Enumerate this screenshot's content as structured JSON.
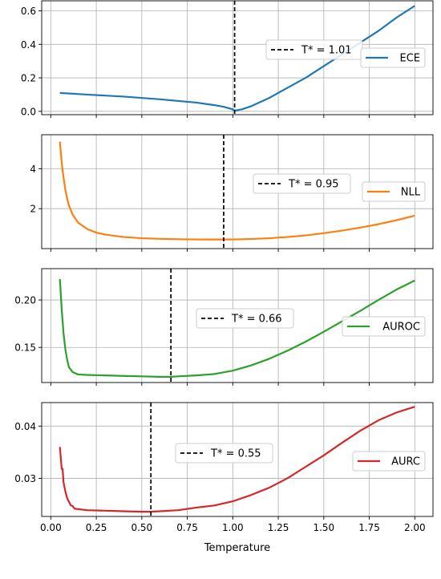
{
  "chart_data": [
    {
      "type": "line",
      "xlim": [
        -0.05,
        2.1
      ],
      "ylim": [
        -0.02,
        0.66
      ],
      "yticks": [
        0.0,
        0.2,
        0.4,
        0.6
      ],
      "ytick_labels": [
        "0.0",
        "0.2",
        "0.4",
        "0.6"
      ],
      "grid": true,
      "series": [
        {
          "name": "ECE",
          "color": "#1f77b4",
          "x": [
            0.05,
            0.2,
            0.4,
            0.6,
            0.8,
            0.9,
            0.95,
            1.0,
            1.01,
            1.05,
            1.1,
            1.2,
            1.3,
            1.4,
            1.5,
            1.6,
            1.7,
            1.8,
            1.9,
            2.0
          ],
          "y": [
            0.11,
            0.1,
            0.088,
            0.072,
            0.052,
            0.037,
            0.027,
            0.012,
            0.004,
            0.012,
            0.03,
            0.08,
            0.14,
            0.2,
            0.27,
            0.34,
            0.41,
            0.48,
            0.56,
            0.63
          ]
        }
      ],
      "vline": {
        "x": 1.01,
        "label": "T* = 1.01",
        "color": "#000000"
      },
      "legend_placement": "right"
    },
    {
      "type": "line",
      "xlim": [
        -0.05,
        2.1
      ],
      "ylim": [
        0.0,
        5.7
      ],
      "yticks": [
        2,
        4
      ],
      "ytick_labels": [
        "2",
        "4"
      ],
      "grid": true,
      "series": [
        {
          "name": "NLL",
          "color": "#ff7f0e",
          "x": [
            0.05,
            0.06,
            0.07,
            0.08,
            0.09,
            0.1,
            0.12,
            0.15,
            0.2,
            0.25,
            0.3,
            0.4,
            0.5,
            0.6,
            0.7,
            0.8,
            0.9,
            0.95,
            1.0,
            1.1,
            1.2,
            1.3,
            1.4,
            1.5,
            1.6,
            1.7,
            1.8,
            1.9,
            2.0
          ],
          "y": [
            5.35,
            4.3,
            3.55,
            2.95,
            2.5,
            2.15,
            1.7,
            1.3,
            0.98,
            0.8,
            0.7,
            0.58,
            0.52,
            0.49,
            0.47,
            0.46,
            0.455,
            0.455,
            0.46,
            0.48,
            0.52,
            0.58,
            0.66,
            0.77,
            0.9,
            1.05,
            1.22,
            1.42,
            1.65
          ]
        }
      ],
      "vline": {
        "x": 0.95,
        "label": "T* = 0.95",
        "color": "#000000"
      },
      "legend_placement": "right"
    },
    {
      "type": "line",
      "xlim": [
        -0.05,
        2.1
      ],
      "ylim": [
        0.113,
        0.233
      ],
      "yticks": [
        0.15,
        0.2
      ],
      "ytick_labels": [
        "0.15",
        "0.20"
      ],
      "grid": true,
      "series": [
        {
          "name": "AUROC",
          "color": "#2ca02c",
          "x": [
            0.05,
            0.06,
            0.07,
            0.08,
            0.09,
            0.1,
            0.12,
            0.15,
            0.2,
            0.3,
            0.4,
            0.5,
            0.6,
            0.66,
            0.7,
            0.8,
            0.9,
            1.0,
            1.1,
            1.2,
            1.3,
            1.4,
            1.5,
            1.6,
            1.7,
            1.8,
            1.9,
            2.0
          ],
          "y": [
            0.222,
            0.19,
            0.165,
            0.148,
            0.137,
            0.129,
            0.124,
            0.1215,
            0.121,
            0.1205,
            0.12,
            0.1195,
            0.119,
            0.119,
            0.1195,
            0.1205,
            0.122,
            0.1255,
            0.131,
            0.138,
            0.1465,
            0.156,
            0.1665,
            0.1775,
            0.1885,
            0.2,
            0.211,
            0.2205
          ]
        }
      ],
      "vline": {
        "x": 0.66,
        "label": "T* = 0.66",
        "color": "#000000"
      },
      "legend_placement": "right"
    },
    {
      "type": "line",
      "xlim": [
        -0.05,
        2.1
      ],
      "ylim": [
        0.0227,
        0.0445
      ],
      "yticks": [
        0.03,
        0.04
      ],
      "ytick_labels": [
        "0.03",
        "0.04"
      ],
      "grid": true,
      "xticks": [
        0.0,
        0.25,
        0.5,
        0.75,
        1.0,
        1.25,
        1.5,
        1.75,
        2.0
      ],
      "xtick_labels": [
        "0.00",
        "0.25",
        "0.50",
        "0.75",
        "1.00",
        "1.25",
        "1.50",
        "1.75",
        "2.00"
      ],
      "xlabel": "Temperature",
      "series": [
        {
          "name": "AURC",
          "color": "#d62728",
          "x": [
            0.05,
            0.06,
            0.065,
            0.07,
            0.08,
            0.09,
            0.1,
            0.11,
            0.12,
            0.13,
            0.15,
            0.2,
            0.3,
            0.4,
            0.5,
            0.55,
            0.6,
            0.7,
            0.8,
            0.9,
            1.0,
            1.1,
            1.2,
            1.3,
            1.4,
            1.5,
            1.6,
            1.7,
            1.8,
            1.9,
            2.0
          ],
          "y": [
            0.036,
            0.0318,
            0.0318,
            0.0292,
            0.0275,
            0.0262,
            0.0255,
            0.0248,
            0.0247,
            0.0242,
            0.0241,
            0.0239,
            0.0238,
            0.0237,
            0.0236,
            0.0236,
            0.0237,
            0.0239,
            0.0244,
            0.0248,
            0.0256,
            0.0268,
            0.0282,
            0.03,
            0.0322,
            0.0344,
            0.0368,
            0.0391,
            0.0411,
            0.0426,
            0.0437
          ]
        }
      ],
      "vline": {
        "x": 0.55,
        "label": "T* = 0.55",
        "color": "#000000"
      },
      "legend_placement": "right"
    }
  ]
}
